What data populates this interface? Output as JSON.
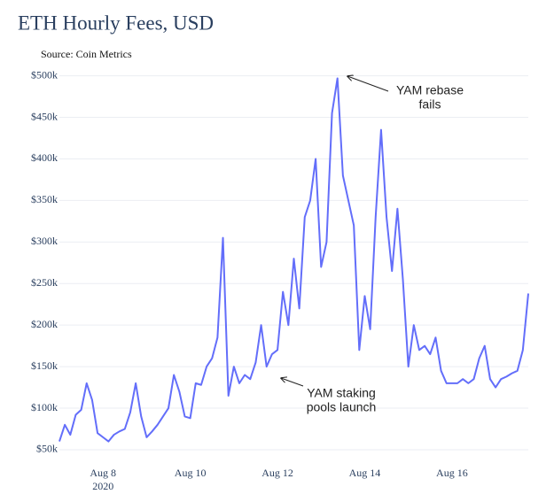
{
  "chart_data": {
    "type": "line",
    "title": "ETH Hourly Fees, USD",
    "subtitle": "Source: Coin Metrics",
    "x_year_label": "2020",
    "x": [
      "2020-08-07T00:00",
      "2020-08-07T03:00",
      "2020-08-07T06:00",
      "2020-08-07T09:00",
      "2020-08-07T12:00",
      "2020-08-07T15:00",
      "2020-08-07T18:00",
      "2020-08-07T21:00",
      "2020-08-08T00:00",
      "2020-08-08T03:00",
      "2020-08-08T06:00",
      "2020-08-08T09:00",
      "2020-08-08T12:00",
      "2020-08-08T15:00",
      "2020-08-08T18:00",
      "2020-08-08T21:00",
      "2020-08-09T00:00",
      "2020-08-09T03:00",
      "2020-08-09T06:00",
      "2020-08-09T09:00",
      "2020-08-09T12:00",
      "2020-08-09T15:00",
      "2020-08-09T18:00",
      "2020-08-09T21:00",
      "2020-08-10T00:00",
      "2020-08-10T03:00",
      "2020-08-10T06:00",
      "2020-08-10T09:00",
      "2020-08-10T12:00",
      "2020-08-10T15:00",
      "2020-08-10T18:00",
      "2020-08-10T21:00",
      "2020-08-11T00:00",
      "2020-08-11T03:00",
      "2020-08-11T06:00",
      "2020-08-11T09:00",
      "2020-08-11T12:00",
      "2020-08-11T15:00",
      "2020-08-11T18:00",
      "2020-08-11T21:00",
      "2020-08-12T00:00",
      "2020-08-12T03:00",
      "2020-08-12T06:00",
      "2020-08-12T09:00",
      "2020-08-12T12:00",
      "2020-08-12T15:00",
      "2020-08-12T18:00",
      "2020-08-12T21:00",
      "2020-08-13T00:00",
      "2020-08-13T03:00",
      "2020-08-13T06:00",
      "2020-08-13T09:00",
      "2020-08-13T12:00",
      "2020-08-13T15:00",
      "2020-08-13T18:00",
      "2020-08-13T21:00",
      "2020-08-14T00:00",
      "2020-08-14T03:00",
      "2020-08-14T06:00",
      "2020-08-14T09:00",
      "2020-08-14T12:00",
      "2020-08-14T15:00",
      "2020-08-14T18:00",
      "2020-08-14T21:00",
      "2020-08-15T00:00",
      "2020-08-15T03:00",
      "2020-08-15T06:00",
      "2020-08-15T09:00",
      "2020-08-15T12:00",
      "2020-08-15T15:00",
      "2020-08-15T18:00",
      "2020-08-15T21:00",
      "2020-08-16T00:00",
      "2020-08-16T03:00",
      "2020-08-16T06:00",
      "2020-08-16T09:00",
      "2020-08-16T12:00",
      "2020-08-16T15:00",
      "2020-08-16T18:00",
      "2020-08-16T21:00",
      "2020-08-17T00:00",
      "2020-08-17T03:00",
      "2020-08-17T06:00",
      "2020-08-17T09:00",
      "2020-08-17T12:00",
      "2020-08-17T15:00",
      "2020-08-17T18:00"
    ],
    "series": [
      {
        "color": "#636efa",
        "values": [
          60000,
          80000,
          68000,
          92000,
          98000,
          130000,
          110000,
          70000,
          65000,
          60000,
          68000,
          72000,
          75000,
          95000,
          130000,
          90000,
          65000,
          72000,
          80000,
          90000,
          100000,
          140000,
          120000,
          90000,
          88000,
          130000,
          128000,
          150000,
          160000,
          185000,
          305000,
          115000,
          150000,
          130000,
          140000,
          135000,
          155000,
          200000,
          150000,
          165000,
          170000,
          240000,
          200000,
          280000,
          220000,
          330000,
          350000,
          400000,
          270000,
          300000,
          455000,
          497000,
          380000,
          350000,
          320000,
          170000,
          235000,
          195000,
          330000,
          435000,
          330000,
          265000,
          340000,
          255000,
          150000,
          200000,
          170000,
          175000,
          165000,
          185000,
          145000,
          130000,
          130000,
          130000,
          135000,
          130000,
          135000,
          160000,
          175000,
          135000,
          125000,
          135000,
          138000,
          142000,
          145000,
          170000,
          238000
        ]
      }
    ],
    "xlim": [
      "2020-08-07T00:00",
      "2020-08-17T18:00"
    ],
    "xticks": [
      {
        "value": "2020-08-08T00:00",
        "label": "Aug 8"
      },
      {
        "value": "2020-08-10T00:00",
        "label": "Aug 10"
      },
      {
        "value": "2020-08-12T00:00",
        "label": "Aug 12"
      },
      {
        "value": "2020-08-14T00:00",
        "label": "Aug 14"
      },
      {
        "value": "2020-08-16T00:00",
        "label": "Aug 16"
      }
    ],
    "ylim": [
      42500,
      506000
    ],
    "yticks": [
      {
        "value": 50000,
        "label": "$50k"
      },
      {
        "value": 100000,
        "label": "$100k"
      },
      {
        "value": 150000,
        "label": "$150k"
      },
      {
        "value": 200000,
        "label": "$200k"
      },
      {
        "value": 250000,
        "label": "$250k"
      },
      {
        "value": 300000,
        "label": "$300k"
      },
      {
        "value": 350000,
        "label": "$350k"
      },
      {
        "value": 400000,
        "label": "$400k"
      },
      {
        "value": 450000,
        "label": "$450k"
      },
      {
        "value": 500000,
        "label": "$500k"
      }
    ],
    "grid": true,
    "annotations": [
      {
        "lines": [
          "YAM rebase",
          "fails"
        ]
      },
      {
        "lines": [
          "YAM staking",
          "pools launch"
        ]
      }
    ]
  }
}
